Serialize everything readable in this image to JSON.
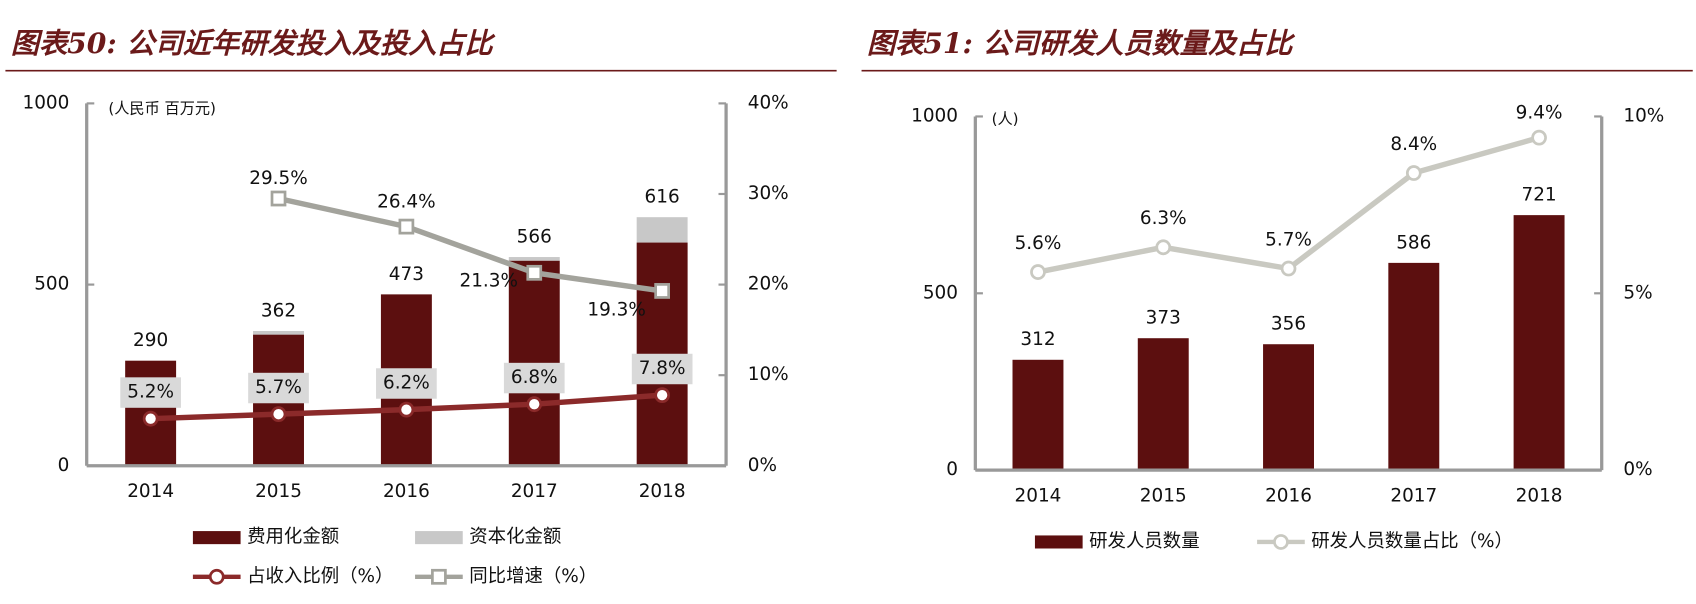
{
  "chart_data": [
    {
      "type": "combo",
      "title": "图表50: 公司近年研发投入及投入占比",
      "ylabel": "(人民币 百万元)",
      "categories": [
        "2014",
        "2015",
        "2016",
        "2017",
        "2018"
      ],
      "stacked": true,
      "ylim": [
        0,
        1000
      ],
      "yticks": [
        0,
        500,
        1000
      ],
      "y2lim": [
        0,
        40
      ],
      "y2ticks": [
        {
          "value": 0,
          "label": "0%"
        },
        {
          "value": 10,
          "label": "10%"
        },
        {
          "value": 20,
          "label": "20%"
        },
        {
          "value": 30,
          "label": "30%"
        },
        {
          "value": 40,
          "label": "40%"
        }
      ],
      "series": [
        {
          "name": "费用化金额",
          "kind": "bar",
          "color": "#5c0f0f",
          "values": [
            290,
            362,
            473,
            566,
            616
          ],
          "show_values": true
        },
        {
          "name": "资本化金额",
          "kind": "bar",
          "color": "#c8c8c8",
          "values": [
            0,
            10,
            0,
            10,
            70
          ]
        },
        {
          "name": "占收入比例（%）",
          "kind": "line",
          "axis": "y2",
          "color": "#8b2a2a",
          "marker": "circle",
          "label_box": true,
          "values": [
            5.2,
            5.7,
            6.2,
            6.8,
            7.8
          ],
          "value_labels": [
            "5.2%",
            "5.7%",
            "6.2%",
            "6.8%",
            "7.8%"
          ]
        },
        {
          "name": "同比增速（%）",
          "kind": "line",
          "axis": "y2",
          "color": "#a3a39c",
          "marker": "square",
          "values": [
            null,
            29.5,
            26.4,
            21.3,
            19.3
          ],
          "value_labels": [
            null,
            "29.5%",
            "26.4%",
            "21.3%",
            "19.3%"
          ]
        }
      ]
    },
    {
      "type": "combo",
      "title": "图表51: 公司研发人员数量及占比",
      "ylabel": "(人)",
      "categories": [
        "2014",
        "2015",
        "2016",
        "2017",
        "2018"
      ],
      "stacked": false,
      "ylim": [
        0,
        1000
      ],
      "yticks": [
        0,
        500,
        1000
      ],
      "y2lim": [
        0,
        10
      ],
      "y2ticks": [
        {
          "value": 0,
          "label": "0%"
        },
        {
          "value": 5,
          "label": "5%"
        },
        {
          "value": 10,
          "label": "10%"
        }
      ],
      "series": [
        {
          "name": "研发人员数量",
          "kind": "bar",
          "color": "#5c0f0f",
          "values": [
            312,
            373,
            356,
            586,
            721
          ],
          "show_values": true
        },
        {
          "name": "研发人员数量占比（%）",
          "kind": "line",
          "axis": "y2",
          "color": "#c9c9c1",
          "marker": "circle",
          "values": [
            5.6,
            6.3,
            5.7,
            8.4,
            9.4
          ],
          "value_labels": [
            "5.6%",
            "6.3%",
            "5.7%",
            "8.4%",
            "9.4%"
          ]
        }
      ]
    }
  ]
}
